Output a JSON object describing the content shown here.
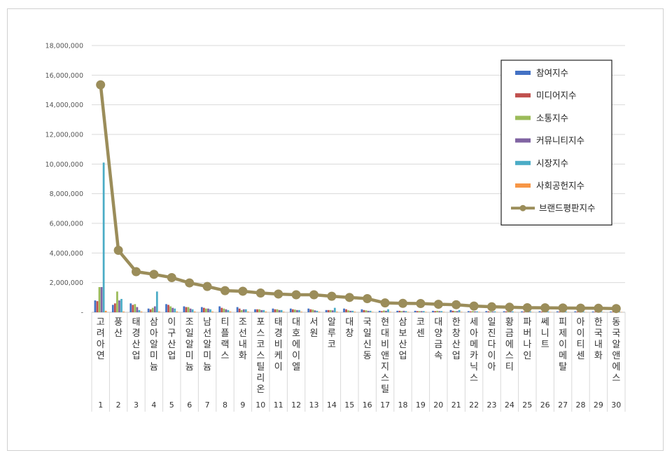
{
  "chart_data": {
    "type": "bar",
    "ylim": [
      0,
      18000000
    ],
    "yticks": [
      "-",
      "2,000,000",
      "4,000,000",
      "6,000,000",
      "8,000,000",
      "10,000,000",
      "12,000,000",
      "14,000,000",
      "16,000,000",
      "18,000,000"
    ],
    "categories": [
      "고려아연",
      "풍산",
      "태경산업",
      "삼아알미늄",
      "이구산업",
      "조일알미늄",
      "남선알미늄",
      "티플랙스",
      "조선내화",
      "포스코스틸리온",
      "태경비케이",
      "대호에이엘",
      "서원",
      "알루코",
      "대창",
      "국일신동",
      "현대비앤지스틸",
      "삼보산업",
      "코센",
      "대양금속",
      "한창산업",
      "세아메카닉스",
      "일진다이아",
      "황금에스티",
      "파버나인",
      "쎄니트",
      "피제이메탈",
      "아이티센",
      "한국내화",
      "동국알앤에스"
    ],
    "ranks": [
      "1",
      "2",
      "3",
      "4",
      "5",
      "6",
      "7",
      "8",
      "9",
      "10",
      "11",
      "12",
      "13",
      "14",
      "15",
      "16",
      "17",
      "18",
      "19",
      "20",
      "21",
      "22",
      "23",
      "24",
      "25",
      "26",
      "27",
      "28",
      "29",
      "30"
    ],
    "series": [
      {
        "name": "참여지수",
        "color": "#4472C4",
        "values": [
          800000,
          500000,
          600000,
          250000,
          550000,
          400000,
          350000,
          400000,
          350000,
          200000,
          250000,
          250000,
          250000,
          150000,
          250000,
          200000,
          100000,
          100000,
          100000,
          100000,
          150000,
          80000,
          80000,
          70000,
          60000,
          70000,
          60000,
          60000,
          50000,
          50000
        ]
      },
      {
        "name": "미디어지수",
        "color": "#C0504D",
        "values": [
          750000,
          600000,
          500000,
          200000,
          500000,
          350000,
          300000,
          300000,
          250000,
          200000,
          200000,
          200000,
          200000,
          150000,
          200000,
          150000,
          80000,
          100000,
          80000,
          80000,
          100000,
          60000,
          60000,
          60000,
          50000,
          50000,
          50000,
          50000,
          40000,
          40000
        ]
      },
      {
        "name": "소통지수",
        "color": "#9BBB59",
        "values": [
          1700000,
          1400000,
          550000,
          300000,
          400000,
          350000,
          250000,
          250000,
          150000,
          200000,
          200000,
          180000,
          180000,
          150000,
          130000,
          130000,
          120000,
          80000,
          80000,
          100000,
          80000,
          80000,
          60000,
          60000,
          50000,
          50000,
          50000,
          50000,
          40000,
          40000
        ]
      },
      {
        "name": "커뮤니티지수",
        "color": "#8064A2",
        "values": [
          1700000,
          800000,
          350000,
          400000,
          300000,
          250000,
          250000,
          200000,
          200000,
          150000,
          150000,
          150000,
          130000,
          130000,
          100000,
          100000,
          100000,
          100000,
          80000,
          80000,
          80000,
          60000,
          50000,
          50000,
          50000,
          40000,
          40000,
          40000,
          40000,
          40000
        ]
      },
      {
        "name": "시장지수",
        "color": "#4BACC6",
        "values": [
          10100000,
          900000,
          150000,
          1400000,
          250000,
          200000,
          200000,
          150000,
          200000,
          150000,
          150000,
          150000,
          100000,
          300000,
          100000,
          100000,
          200000,
          80000,
          80000,
          80000,
          150000,
          60000,
          60000,
          60000,
          60000,
          50000,
          50000,
          40000,
          40000,
          40000
        ]
      },
      {
        "name": "사회공헌지수",
        "color": "#F79646",
        "values": [
          100000,
          50000,
          50000,
          50000,
          50000,
          50000,
          50000,
          50000,
          50000,
          50000,
          40000,
          40000,
          40000,
          40000,
          40000,
          30000,
          30000,
          30000,
          30000,
          30000,
          30000,
          30000,
          20000,
          20000,
          20000,
          20000,
          20000,
          20000,
          20000,
          20000
        ]
      }
    ],
    "line": {
      "name": "브랜드평판지수",
      "color": "#9B8D5A",
      "values": [
        15350000,
        4180000,
        2740000,
        2560000,
        2340000,
        1980000,
        1740000,
        1460000,
        1420000,
        1300000,
        1230000,
        1180000,
        1180000,
        1080000,
        1000000,
        920000,
        630000,
        600000,
        590000,
        540000,
        510000,
        420000,
        370000,
        340000,
        310000,
        300000,
        290000,
        280000,
        270000,
        250000
      ]
    },
    "legend_position": "top-right"
  }
}
